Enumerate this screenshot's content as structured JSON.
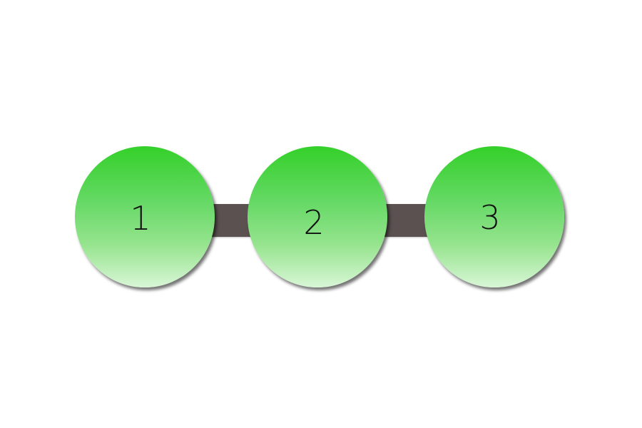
{
  "steps": [
    {
      "label": "1"
    },
    {
      "label": "2"
    },
    {
      "label": "3"
    }
  ],
  "colors": {
    "background": "#ffffff",
    "circle_top": "#34d02a",
    "circle_bottom": "#d8f6d6",
    "connector": "#5a5150",
    "text": "#111111"
  }
}
